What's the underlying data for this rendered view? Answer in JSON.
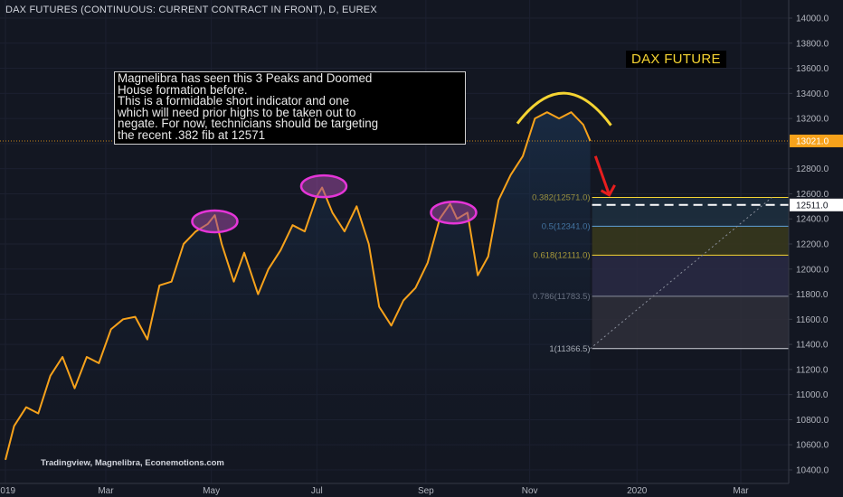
{
  "chart_title": "DAX FUTURES (CONTINUOUS: CURRENT CONTRACT IN FRONT), D, EUREX",
  "brand_label": "DAX FUTURE",
  "annotation": [
    "Magnelibra has seen this 3 Peaks and Doomed",
    "House formation before.",
    "This is a formidable short indicator and one",
    "which will need prior highs to be taken out to",
    "negate. For now, technicians should be targeting",
    "the recent .382 fib at 12571"
  ],
  "credits": "Tradingview, Magnelibra, Econemotions.com",
  "colors": {
    "background": "#131722",
    "price_line": "#f7a21b",
    "peak_ellipse": "#e535d8",
    "arch": "#f5d432",
    "arrow": "#e81e1e",
    "last_price_badge": "#f7a21b",
    "fib_382": "#f5d432",
    "fib_05": "#5ea0d8",
    "fib_618": "#f5d432",
    "fib_786": "#8a8f9c",
    "fib_1": "#cfd2d9"
  },
  "chart_data": {
    "type": "line",
    "title": "DAX FUTURES (CONTINUOUS: CURRENT CONTRACT IN FRONT), D, EUREX",
    "ylim": [
      10300,
      14150
    ],
    "y_ticks": [
      "14000.0",
      "13800.0",
      "13600.0",
      "13400.0",
      "13200.0",
      "13000.0",
      "12800.0",
      "12600.0",
      "12400.0",
      "12200.0",
      "12000.0",
      "11800.0",
      "11600.0",
      "11400.0",
      "11200.0",
      "11000.0",
      "10800.0",
      "10600.0",
      "10400.0"
    ],
    "y_tick_values": [
      14000,
      13800,
      13600,
      13400,
      13200,
      13000,
      12800,
      12600,
      12400,
      12200,
      12000,
      11800,
      11600,
      11400,
      11200,
      11000,
      10800,
      10600,
      10400
    ],
    "x_ticks": [
      "2019",
      "Mar",
      "May",
      "Jul",
      "Sep",
      "Nov",
      "2020",
      "Mar"
    ],
    "x_tick_dates": [
      "2019-01-02",
      "2019-03-01",
      "2019-05-01",
      "2019-07-01",
      "2019-09-02",
      "2019-11-01",
      "2020-01-02",
      "2020-03-02"
    ],
    "series": [
      {
        "points": [
          [
            "2019-01-02",
            10480
          ],
          [
            "2019-01-07",
            10750
          ],
          [
            "2019-01-14",
            10900
          ],
          [
            "2019-01-21",
            10850
          ],
          [
            "2019-01-28",
            11150
          ],
          [
            "2019-02-04",
            11300
          ],
          [
            "2019-02-11",
            11050
          ],
          [
            "2019-02-18",
            11300
          ],
          [
            "2019-02-25",
            11250
          ],
          [
            "2019-03-04",
            11520
          ],
          [
            "2019-03-11",
            11600
          ],
          [
            "2019-03-18",
            11620
          ],
          [
            "2019-03-25",
            11440
          ],
          [
            "2019-04-01",
            11870
          ],
          [
            "2019-04-08",
            11900
          ],
          [
            "2019-04-15",
            12200
          ],
          [
            "2019-04-22",
            12300
          ],
          [
            "2019-04-29",
            12360
          ],
          [
            "2019-05-03",
            12430
          ],
          [
            "2019-05-07",
            12200
          ],
          [
            "2019-05-14",
            11900
          ],
          [
            "2019-05-20",
            12130
          ],
          [
            "2019-05-28",
            11800
          ],
          [
            "2019-06-03",
            12000
          ],
          [
            "2019-06-10",
            12150
          ],
          [
            "2019-06-17",
            12350
          ],
          [
            "2019-06-24",
            12300
          ],
          [
            "2019-07-01",
            12580
          ],
          [
            "2019-07-04",
            12650
          ],
          [
            "2019-07-10",
            12450
          ],
          [
            "2019-07-17",
            12300
          ],
          [
            "2019-07-24",
            12500
          ],
          [
            "2019-07-31",
            12200
          ],
          [
            "2019-08-06",
            11700
          ],
          [
            "2019-08-13",
            11550
          ],
          [
            "2019-08-20",
            11750
          ],
          [
            "2019-08-27",
            11850
          ],
          [
            "2019-09-03",
            12050
          ],
          [
            "2019-09-10",
            12400
          ],
          [
            "2019-09-16",
            12520
          ],
          [
            "2019-09-20",
            12400
          ],
          [
            "2019-09-26",
            12450
          ],
          [
            "2019-10-02",
            11950
          ],
          [
            "2019-10-08",
            12100
          ],
          [
            "2019-10-14",
            12550
          ],
          [
            "2019-10-21",
            12750
          ],
          [
            "2019-10-28",
            12900
          ],
          [
            "2019-11-04",
            13200
          ],
          [
            "2019-11-11",
            13250
          ],
          [
            "2019-11-18",
            13200
          ],
          [
            "2019-11-25",
            13250
          ],
          [
            "2019-12-02",
            13150
          ],
          [
            "2019-12-06",
            13021
          ]
        ]
      }
    ],
    "last_price": "13021.0",
    "dashed_level": "12511.0",
    "fib_levels": [
      {
        "label": "0.382(12571.0)",
        "ratio": 0.382,
        "value": 12571.0
      },
      {
        "label": "0.5(12341.0)",
        "ratio": 0.5,
        "value": 12341.0
      },
      {
        "label": "0.618(12111.0)",
        "ratio": 0.618,
        "value": 12111.0
      },
      {
        "label": "0.786(11783.5)",
        "ratio": 0.786,
        "value": 11783.5
      },
      {
        "label": "1(11366.5)",
        "ratio": 1,
        "value": 11366.5
      }
    ],
    "peak_markers": [
      {
        "date": "2019-05-03",
        "value": 12380
      },
      {
        "date": "2019-07-05",
        "value": 12660
      },
      {
        "date": "2019-09-18",
        "value": 12450
      }
    ],
    "trendline": {
      "from": [
        "2019-12-06",
        11366.5
      ],
      "to": [
        "2020-03-20",
        12571
      ]
    },
    "grid": true
  }
}
